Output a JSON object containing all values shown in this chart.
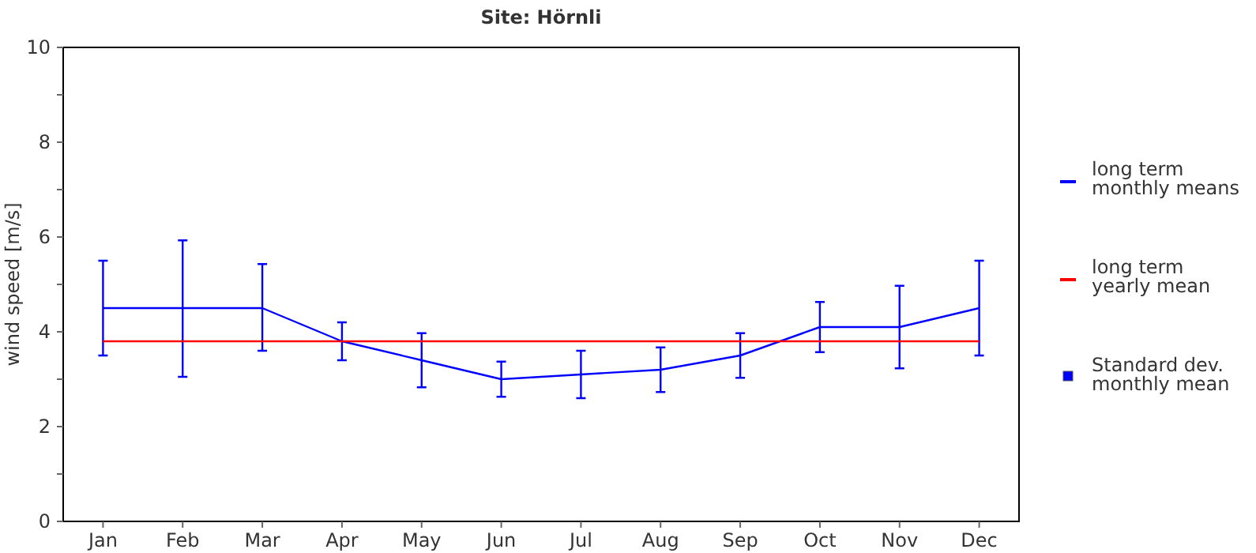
{
  "chart_data": {
    "type": "line",
    "title": "Site: Hörnli",
    "ylabel": "wind speed [m/s]",
    "categories": [
      "Jan",
      "Feb",
      "Mar",
      "Apr",
      "May",
      "Jun",
      "Jul",
      "Aug",
      "Sep",
      "Oct",
      "Nov",
      "Dec"
    ],
    "series": [
      {
        "name": "long term\nmonthly means",
        "color": "#0000ff",
        "values": [
          4.5,
          4.5,
          4.5,
          3.8,
          3.4,
          3.0,
          3.1,
          3.2,
          3.5,
          4.1,
          4.1,
          4.5
        ],
        "errors": [
          [
            3.5,
            5.5
          ],
          [
            3.05,
            5.93
          ],
          [
            3.6,
            5.43
          ],
          [
            3.4,
            4.2
          ],
          [
            2.83,
            3.97
          ],
          [
            2.63,
            3.37
          ],
          [
            2.6,
            3.6
          ],
          [
            2.73,
            3.67
          ],
          [
            3.03,
            3.97
          ],
          [
            3.57,
            4.63
          ],
          [
            3.23,
            4.97
          ],
          [
            3.5,
            5.5
          ]
        ]
      },
      {
        "name": "long term\nyearly mean",
        "color": "#ff0000",
        "values": [
          3.8,
          3.8,
          3.8,
          3.8,
          3.8,
          3.8,
          3.8,
          3.8,
          3.8,
          3.8,
          3.8,
          3.8
        ]
      }
    ],
    "annotations": [
      "Standard dev.\nmonthly mean"
    ],
    "ylim": [
      0,
      10
    ],
    "yticks": [
      0,
      {
        "value": 1,
        "label": null
      },
      2,
      {
        "value": 3,
        "label": null
      },
      4,
      {
        "value": 5,
        "label": null
      },
      6,
      {
        "value": 7,
        "label": null
      },
      8,
      {
        "value": 9,
        "label": null
      },
      10
    ],
    "grid": false,
    "legend": "right",
    "marker": "none",
    "line_style": "solid"
  }
}
